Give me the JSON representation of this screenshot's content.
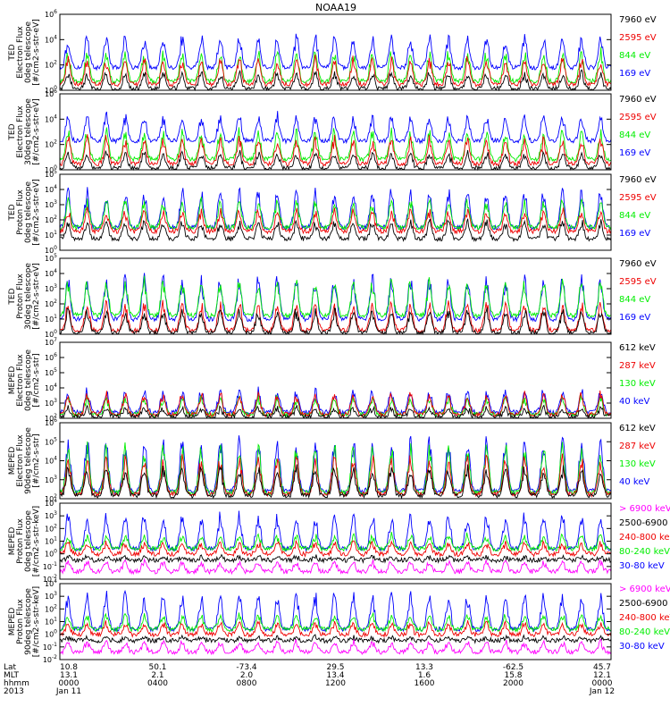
{
  "title": "NOAA19",
  "colors": {
    "black": "#000000",
    "red": "#ee0000",
    "green": "#00ee00",
    "blue": "#0000ff",
    "magenta": "#ff00ff"
  },
  "chart_data": [
    {
      "type": "line",
      "instrument": "TED",
      "ylabel": [
        "TED",
        "Electron Flux",
        "0deg telescope",
        "[#/cm2-s-str-eV]"
      ],
      "ylim": [
        1,
        1000000
      ],
      "scale": "log",
      "yticks": [
        "10^0",
        "10^2",
        "10^4",
        "10^6"
      ],
      "legend": [
        {
          "label": "7960 eV",
          "color": "black"
        },
        {
          "label": "2595 eV",
          "color": "red"
        },
        {
          "label": "844 eV",
          "color": "green"
        },
        {
          "label": "169 eV",
          "color": "blue"
        }
      ]
    },
    {
      "type": "line",
      "instrument": "TED",
      "ylabel": [
        "TED",
        "Electron Flux",
        "30deg telescope",
        "[#/cm2-s-str-eV]"
      ],
      "ylim": [
        1,
        1000000
      ],
      "scale": "log",
      "yticks": [
        "10^0",
        "10^2",
        "10^4",
        "10^6"
      ],
      "legend": [
        {
          "label": "7960 eV",
          "color": "black"
        },
        {
          "label": "2595 eV",
          "color": "red"
        },
        {
          "label": "844 eV",
          "color": "green"
        },
        {
          "label": "169 eV",
          "color": "blue"
        }
      ]
    },
    {
      "type": "line",
      "instrument": "TED",
      "ylabel": [
        "TED",
        "Proton Flux",
        "0deg telescope",
        "[#/cm2-s-str-eV]"
      ],
      "ylim": [
        1,
        100000
      ],
      "scale": "log",
      "yticks": [
        "10^0",
        "10^1",
        "10^2",
        "10^3",
        "10^4",
        "10^5"
      ],
      "legend": [
        {
          "label": "7960 eV",
          "color": "black"
        },
        {
          "label": "2595 eV",
          "color": "red"
        },
        {
          "label": "844 eV",
          "color": "green"
        },
        {
          "label": "169 eV",
          "color": "blue"
        }
      ]
    },
    {
      "type": "line",
      "instrument": "TED",
      "ylabel": [
        "TED",
        "Proton Flux",
        "30deg telescope",
        "[#/cm2-s-str-eV]"
      ],
      "ylim": [
        1,
        100000
      ],
      "scale": "log",
      "yticks": [
        "10^0",
        "10^1",
        "10^2",
        "10^3",
        "10^4",
        "10^5"
      ],
      "legend": [
        {
          "label": "7960 eV",
          "color": "black"
        },
        {
          "label": "2595 eV",
          "color": "red"
        },
        {
          "label": "844 eV",
          "color": "green"
        },
        {
          "label": "169 eV",
          "color": "blue"
        }
      ]
    },
    {
      "type": "line",
      "instrument": "MEPED",
      "ylabel": [
        "MEPED",
        "Electron Flux",
        "0deg telescope",
        "[#/cm2-s-str]"
      ],
      "ylim": [
        100,
        10000000
      ],
      "scale": "log",
      "yticks": [
        "10^2",
        "10^3",
        "10^4",
        "10^5",
        "10^6",
        "10^7"
      ],
      "legend": [
        {
          "label": "612 keV",
          "color": "black"
        },
        {
          "label": "287 keV",
          "color": "red"
        },
        {
          "label": "130 keV",
          "color": "green"
        },
        {
          "label": "40 keV",
          "color": "blue"
        }
      ]
    },
    {
      "type": "line",
      "instrument": "MEPED",
      "ylabel": [
        "MEPED",
        "Electron Flux",
        "90deg telescope",
        "[#/cm2-s-str]"
      ],
      "ylim": [
        100,
        1000000
      ],
      "scale": "log",
      "yticks": [
        "10^2",
        "10^3",
        "10^4",
        "10^5",
        "10^6"
      ],
      "legend": [
        {
          "label": "612 keV",
          "color": "black"
        },
        {
          "label": "287 keV",
          "color": "red"
        },
        {
          "label": "130 keV",
          "color": "green"
        },
        {
          "label": "40 keV",
          "color": "blue"
        }
      ]
    },
    {
      "type": "line",
      "instrument": "MEPED",
      "ylabel": [
        "MEPED",
        "Proton Flux",
        "0deg telescope",
        "[#/cm2-s-str-keV]"
      ],
      "ylim": [
        0.01,
        10000
      ],
      "scale": "log",
      "yticks": [
        "10^-2",
        "10^-1",
        "10^0",
        "10^1",
        "10^2",
        "10^3",
        "10^4"
      ],
      "legend": [
        {
          "label": "> 6900 keV",
          "color": "magenta"
        },
        {
          "label": "2500-6900",
          "color": "black"
        },
        {
          "label": "240-800 ke",
          "color": "red"
        },
        {
          "label": "80-240 keV",
          "color": "green"
        },
        {
          "label": "30-80 keV",
          "color": "blue"
        }
      ]
    },
    {
      "type": "line",
      "instrument": "MEPED",
      "ylabel": [
        "MEPED",
        "Proton Flux",
        "90deg telescope",
        "[#/cm2-s-str-keV]"
      ],
      "ylim": [
        0.01,
        10000
      ],
      "scale": "log",
      "yticks": [
        "10^-2",
        "10^-1",
        "10^0",
        "10^1",
        "10^2",
        "10^3",
        "10^4"
      ],
      "legend": [
        {
          "label": "> 6900 keV",
          "color": "magenta"
        },
        {
          "label": "2500-6900",
          "color": "black"
        },
        {
          "label": "240-800 keV",
          "color": "red"
        },
        {
          "label": "80-240 keV",
          "color": "green"
        },
        {
          "label": "30-80 keV",
          "color": "blue"
        }
      ]
    }
  ],
  "x_axis": {
    "row_labels": [
      "Lat",
      "MLT",
      "hhmm",
      "2013"
    ],
    "ticks": [
      {
        "lat": "10.8",
        "mlt": "13.1",
        "hhmm": "0000",
        "date": "Jan 11"
      },
      {
        "lat": "50.1",
        "mlt": "2.1",
        "hhmm": "0400",
        "date": ""
      },
      {
        "lat": "-73.4",
        "mlt": "2.0",
        "hhmm": "0800",
        "date": ""
      },
      {
        "lat": "29.5",
        "mlt": "13.4",
        "hhmm": "1200",
        "date": ""
      },
      {
        "lat": "13.3",
        "mlt": "1.6",
        "hhmm": "1600",
        "date": ""
      },
      {
        "lat": "-62.5",
        "mlt": "15.8",
        "hhmm": "2000",
        "date": ""
      },
      {
        "lat": "45.7",
        "mlt": "12.1",
        "hhmm": "0000",
        "date": "Jan 12"
      }
    ]
  }
}
